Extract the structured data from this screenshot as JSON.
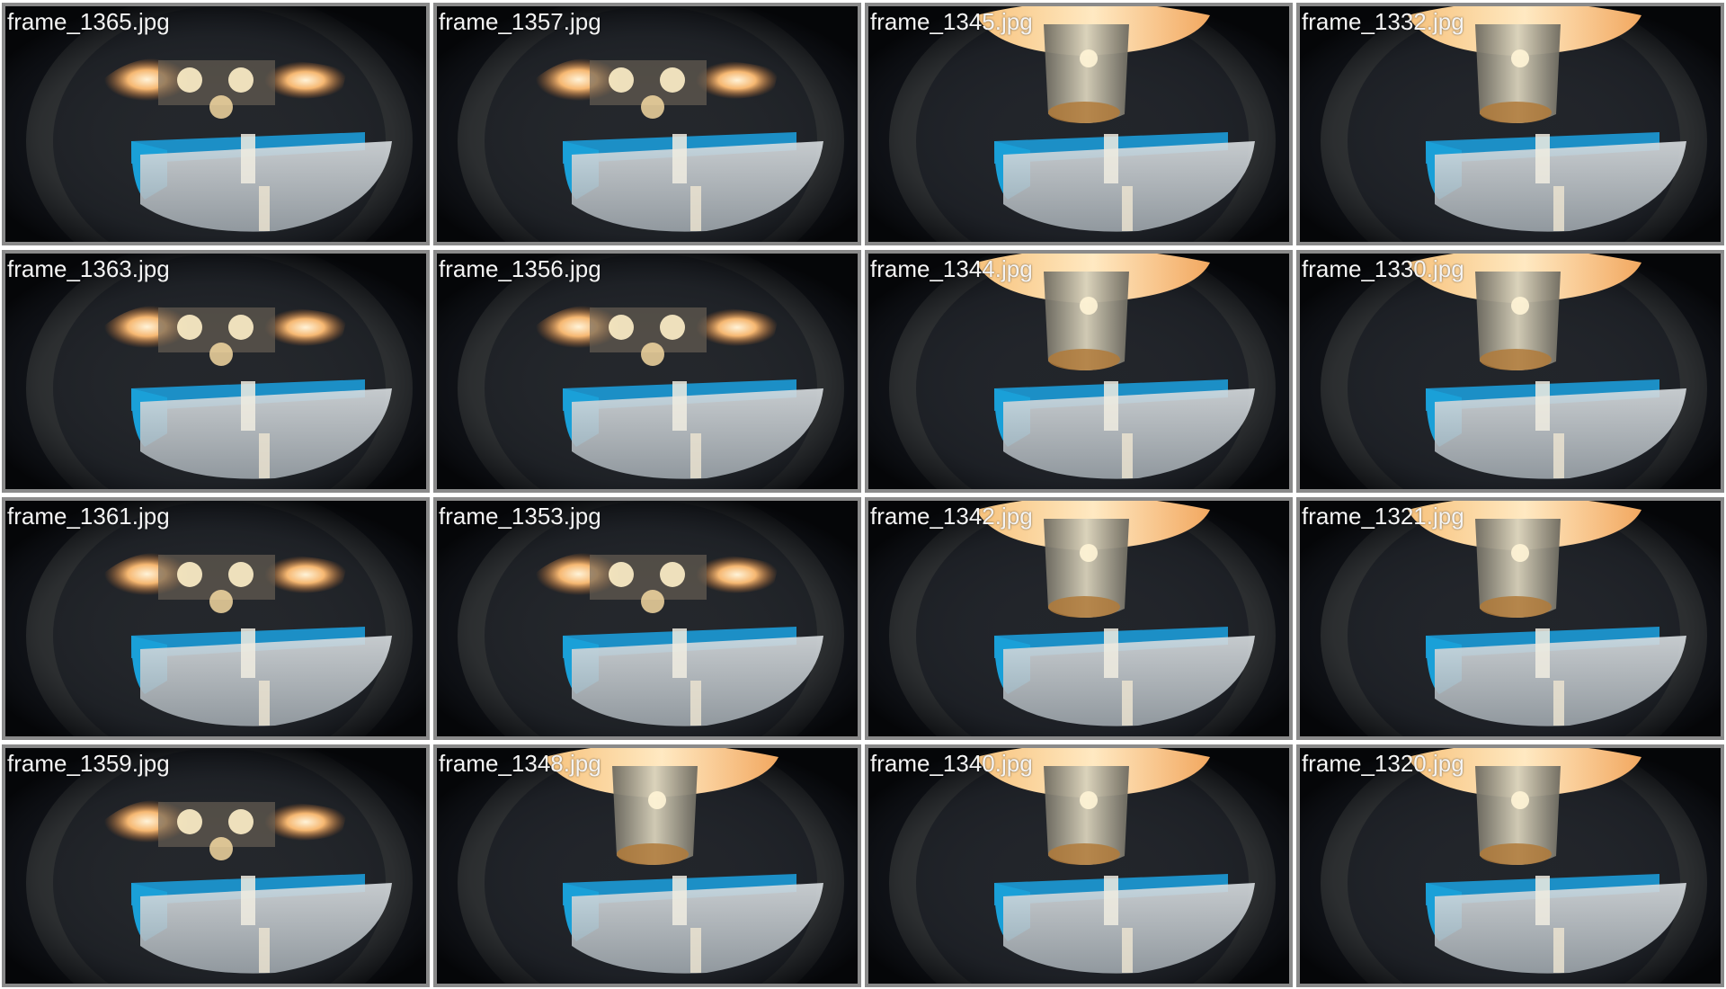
{
  "colors": {
    "border": "#8a8a8a",
    "background": "#ffffff",
    "label": "#f4f4f4",
    "scene_dark": "#0a0c12",
    "ring_warm": "#f2a860",
    "blue_edge": "#1aa0d8"
  },
  "grid": {
    "columns": 4,
    "rows": 4
  },
  "tiles": [
    {
      "label": "frame_1365.jpg",
      "variant": "lamp"
    },
    {
      "label": "frame_1357.jpg",
      "variant": "lamp"
    },
    {
      "label": "frame_1345.jpg",
      "variant": "cup"
    },
    {
      "label": "frame_1332.jpg",
      "variant": "cup"
    },
    {
      "label": "frame_1363.jpg",
      "variant": "lamp"
    },
    {
      "label": "frame_1356.jpg",
      "variant": "lamp"
    },
    {
      "label": "frame_1344.jpg",
      "variant": "cup"
    },
    {
      "label": "frame_1330.jpg",
      "variant": "cup"
    },
    {
      "label": "frame_1361.jpg",
      "variant": "lamp"
    },
    {
      "label": "frame_1353.jpg",
      "variant": "lamp"
    },
    {
      "label": "frame_1342.jpg",
      "variant": "cup"
    },
    {
      "label": "frame_1321.jpg",
      "variant": "cup"
    },
    {
      "label": "frame_1359.jpg",
      "variant": "lamp"
    },
    {
      "label": "frame_1348.jpg",
      "variant": "cup"
    },
    {
      "label": "frame_1340.jpg",
      "variant": "cup"
    },
    {
      "label": "frame_1320.jpg",
      "variant": "cup"
    }
  ]
}
